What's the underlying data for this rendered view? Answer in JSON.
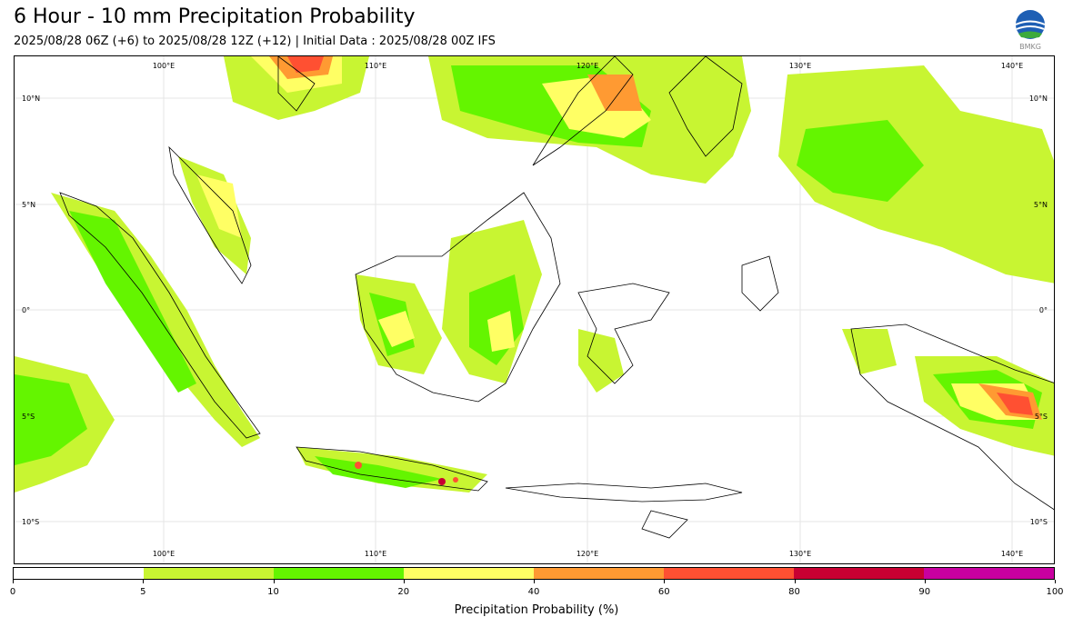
{
  "title": "6 Hour - 10 mm Precipitation Probability",
  "subtitle": "2025/08/28 06Z (+6) to 2025/08/28 12Z (+12) | Initial Data : 2025/08/28 00Z IFS",
  "logo_text": "BMKG",
  "map": {
    "lon_labels": [
      "100°E",
      "110°E",
      "120°E",
      "130°E",
      "140°E"
    ],
    "lat_labels": [
      "10°N",
      "5°N",
      "0°",
      "5°S",
      "10°S"
    ],
    "region": "Indonesia",
    "extent": {
      "lon": [
        93,
        142
      ],
      "lat": [
        -12,
        12
      ]
    }
  },
  "colorbar": {
    "label": "Precipitation Probability (%)",
    "ticks": [
      "0",
      "5",
      "10",
      "20",
      "40",
      "60",
      "80",
      "90",
      "100"
    ],
    "colors": [
      "#ffffff",
      "#c8f532",
      "#64f500",
      "#ffff64",
      "#ff9a32",
      "#ff5032",
      "#c80032",
      "#c800a0"
    ]
  }
}
